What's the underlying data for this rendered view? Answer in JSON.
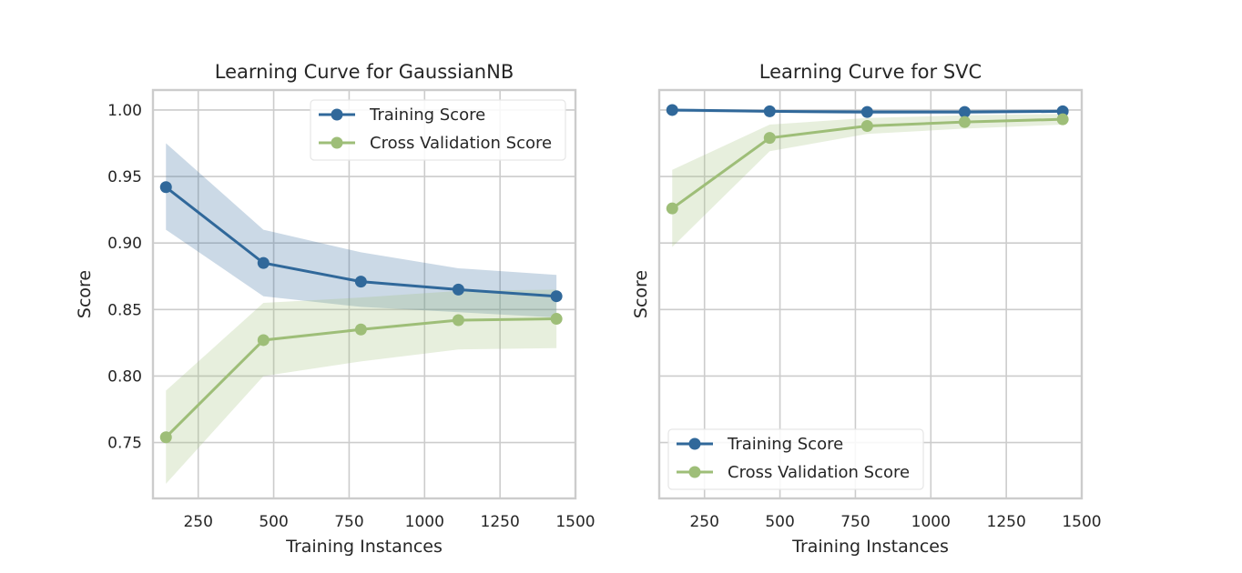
{
  "chart_data": [
    {
      "type": "line",
      "title": "Learning Curve for GaussianNB",
      "xlabel": "Training Instances",
      "ylabel": "Score",
      "xlim": [
        100,
        1500
      ],
      "ylim": [
        0.708,
        1.015
      ],
      "xticks": [
        250,
        500,
        750,
        1000,
        1250,
        1500
      ],
      "xtick_labels": [
        "250",
        "500",
        "750",
        "1000",
        "1250",
        "1500"
      ],
      "yticks": [
        0.75,
        0.8,
        0.85,
        0.9,
        0.95,
        1.0
      ],
      "ytick_labels": [
        "0.75",
        "0.80",
        "0.85",
        "0.90",
        "0.95",
        "1.00"
      ],
      "grid": true,
      "legend_position": "top-right",
      "x": [
        143,
        466,
        789,
        1112,
        1437
      ],
      "series": [
        {
          "name": "Training Score",
          "color": "#30689a",
          "values": [
            0.942,
            0.885,
            0.871,
            0.865,
            0.86
          ],
          "band_low": [
            0.91,
            0.86,
            0.852,
            0.848,
            0.844
          ],
          "band_high": [
            0.975,
            0.91,
            0.893,
            0.881,
            0.876
          ]
        },
        {
          "name": "Cross Validation Score",
          "color": "#9ebe78",
          "values": [
            0.754,
            0.827,
            0.835,
            0.842,
            0.843
          ],
          "band_low": [
            0.719,
            0.8,
            0.811,
            0.82,
            0.821
          ],
          "band_high": [
            0.789,
            0.855,
            0.859,
            0.864,
            0.865
          ]
        }
      ]
    },
    {
      "type": "line",
      "title": "Learning Curve for SVC",
      "xlabel": "Training Instances",
      "ylabel": "Score",
      "xlim": [
        100,
        1500
      ],
      "ylim": [
        0.708,
        1.015
      ],
      "xticks": [
        250,
        500,
        750,
        1000,
        1250,
        1500
      ],
      "xtick_labels": [
        "250",
        "500",
        "750",
        "1000",
        "1250",
        "1500"
      ],
      "yticks": [
        0.75,
        0.8,
        0.85,
        0.9,
        0.95,
        1.0
      ],
      "ytick_labels": [],
      "grid": true,
      "legend_position": "bottom-left",
      "x": [
        143,
        466,
        789,
        1112,
        1437
      ],
      "series": [
        {
          "name": "Training Score",
          "color": "#30689a",
          "values": [
            1.0,
            0.999,
            0.9985,
            0.9985,
            0.999
          ],
          "band_low": [
            0.9985,
            0.998,
            0.997,
            0.997,
            0.998
          ],
          "band_high": [
            1.0005,
            1.0,
            1.0,
            1.0,
            1.0005
          ]
        },
        {
          "name": "Cross Validation Score",
          "color": "#9ebe78",
          "values": [
            0.926,
            0.979,
            0.988,
            0.991,
            0.993
          ],
          "band_low": [
            0.897,
            0.969,
            0.982,
            0.986,
            0.989
          ],
          "band_high": [
            0.955,
            0.989,
            0.994,
            0.996,
            0.997
          ]
        }
      ]
    }
  ]
}
